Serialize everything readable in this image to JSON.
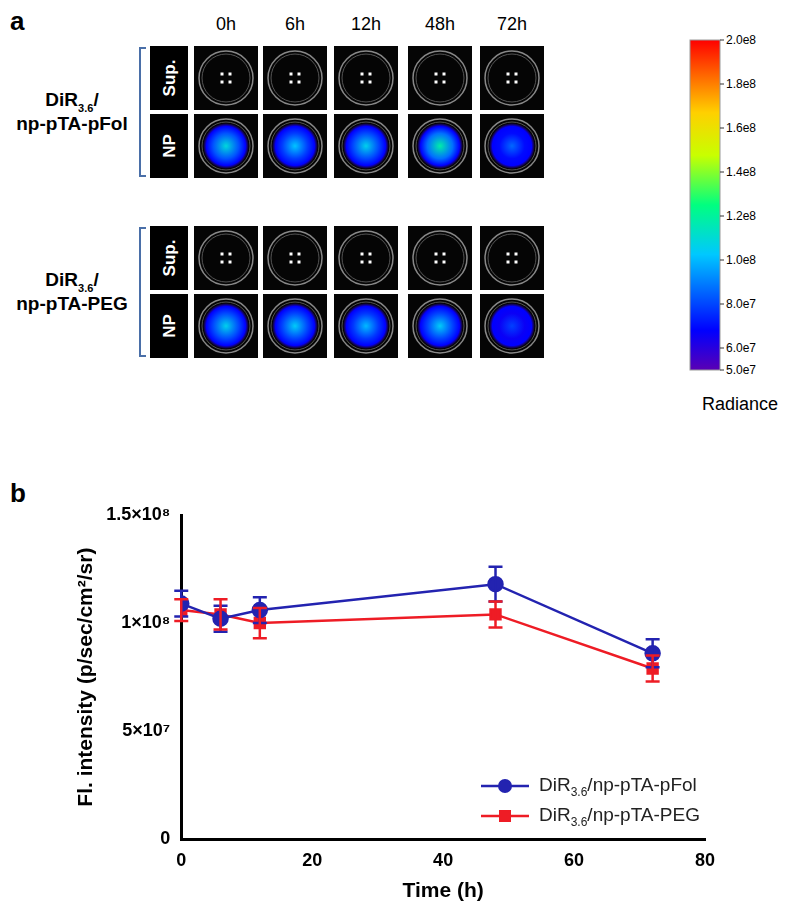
{
  "panel_labels": [
    "a",
    "b"
  ],
  "image_panel": {
    "times": [
      "0h",
      "6h",
      "12h",
      "48h",
      "72h"
    ],
    "groups": [
      {
        "name": "DiR3.6/np-pTA-pFol",
        "rows": [
          "Sup.",
          "NP"
        ]
      },
      {
        "name": "DiR3.6/np-pTA-PEG",
        "rows": [
          "Sup.",
          "NP"
        ]
      }
    ],
    "colorbar": {
      "title": "Radiance",
      "range": [
        50000000,
        200000000
      ],
      "ticks": [
        {
          "value": 200000000,
          "label": "2.0e8"
        },
        {
          "value": 180000000,
          "label": "1.8e8"
        },
        {
          "value": 160000000,
          "label": "1.6e8"
        },
        {
          "value": 140000000,
          "label": "1.4e8"
        },
        {
          "value": 120000000,
          "label": "1.2e8"
        },
        {
          "value": 100000000,
          "label": "1.0e8"
        },
        {
          "value": 80000000,
          "label": "8.0e7"
        },
        {
          "value": 60000000,
          "label": "6.0e7"
        },
        {
          "value": 50000000,
          "label": "5.0e7"
        }
      ]
    }
  },
  "chart_data": {
    "type": "line",
    "x_label": "Time (h)",
    "y_label": "Fl. intensity (p/sec/cm²/sr)",
    "x": [
      0,
      6,
      12,
      48,
      72
    ],
    "series": [
      {
        "name": "DiR3.6/np-pTA-pFol",
        "color": "#2323b0",
        "marker": "circle",
        "values": [
          109000000,
          102000000,
          106000000,
          118000000,
          86000000
        ],
        "errors": [
          6000000,
          6000000,
          6000000,
          8000000,
          6500000
        ]
      },
      {
        "name": "DiR3.6/np-pTA-PEG",
        "color": "#ee1c25",
        "marker": "square",
        "values": [
          106000000,
          104000000,
          100000000,
          104000000,
          79000000
        ],
        "errors": [
          5000000,
          7000000,
          7000000,
          6000000,
          6000000
        ]
      }
    ],
    "xlim": [
      0,
      80
    ],
    "xticks": [
      0,
      20,
      40,
      60,
      80
    ],
    "ylim": [
      0,
      150000000
    ],
    "yticks": [
      0,
      {
        "value": 50000000,
        "label": "5×10⁷"
      },
      {
        "value": 100000000,
        "label": "1×10⁸"
      },
      {
        "value": 150000000,
        "label": "1.5×10⁸"
      }
    ],
    "grid": false,
    "legend": "lower right"
  }
}
